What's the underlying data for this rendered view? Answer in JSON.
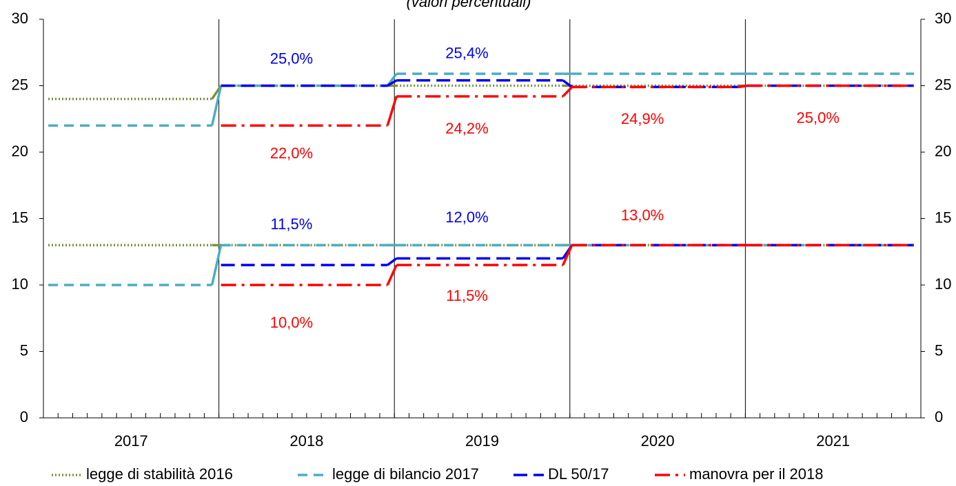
{
  "chart_data": {
    "type": "line",
    "subtitle": "(valori percentuali)",
    "categories": [
      "2017",
      "2018",
      "2019",
      "2020",
      "2021"
    ],
    "series": [
      {
        "name": "legge di stabilità 2016",
        "color": "#77933c",
        "line_style": "dotted",
        "values": [
          [
            24,
            25,
            25,
            25,
            25
          ],
          [
            13,
            13,
            13,
            13,
            13
          ]
        ]
      },
      {
        "name": "legge di bilancio 2017",
        "color": "#4bacc6",
        "line_style": "dashed",
        "values": [
          [
            22,
            25,
            25.9,
            25.9,
            25.9
          ],
          [
            10,
            13,
            13,
            13,
            13
          ]
        ]
      },
      {
        "name": "DL 50/17",
        "color": "#0000ee",
        "line_style": "long-dashed",
        "values": [
          [
            null,
            25,
            25.4,
            24.9,
            25
          ],
          [
            null,
            11.5,
            12,
            13,
            13
          ]
        ],
        "value_labels": [
          [
            null,
            "25,0%",
            "25,4%",
            null,
            null
          ],
          [
            null,
            "11,5%",
            "12,0%",
            null,
            null
          ]
        ]
      },
      {
        "name": "manovra per il 2018",
        "color": "#ff0000",
        "line_style": "dash-dot",
        "values": [
          [
            null,
            22,
            24.2,
            24.9,
            25
          ],
          [
            null,
            10,
            11.5,
            13,
            13
          ]
        ],
        "value_labels": [
          [
            null,
            "22,0%",
            "24,2%",
            "24,9%",
            "25,0%"
          ],
          [
            null,
            "10,0%",
            "11,5%",
            "13,0%",
            null
          ]
        ]
      }
    ],
    "ylim": [
      0,
      30
    ],
    "yticks": [
      0,
      5,
      10,
      15,
      20,
      25,
      30
    ],
    "y2lim": [
      0,
      30
    ],
    "y2ticks": [
      0,
      5,
      10,
      15,
      20,
      25,
      30
    ],
    "legend": "bottom",
    "grid": false
  }
}
